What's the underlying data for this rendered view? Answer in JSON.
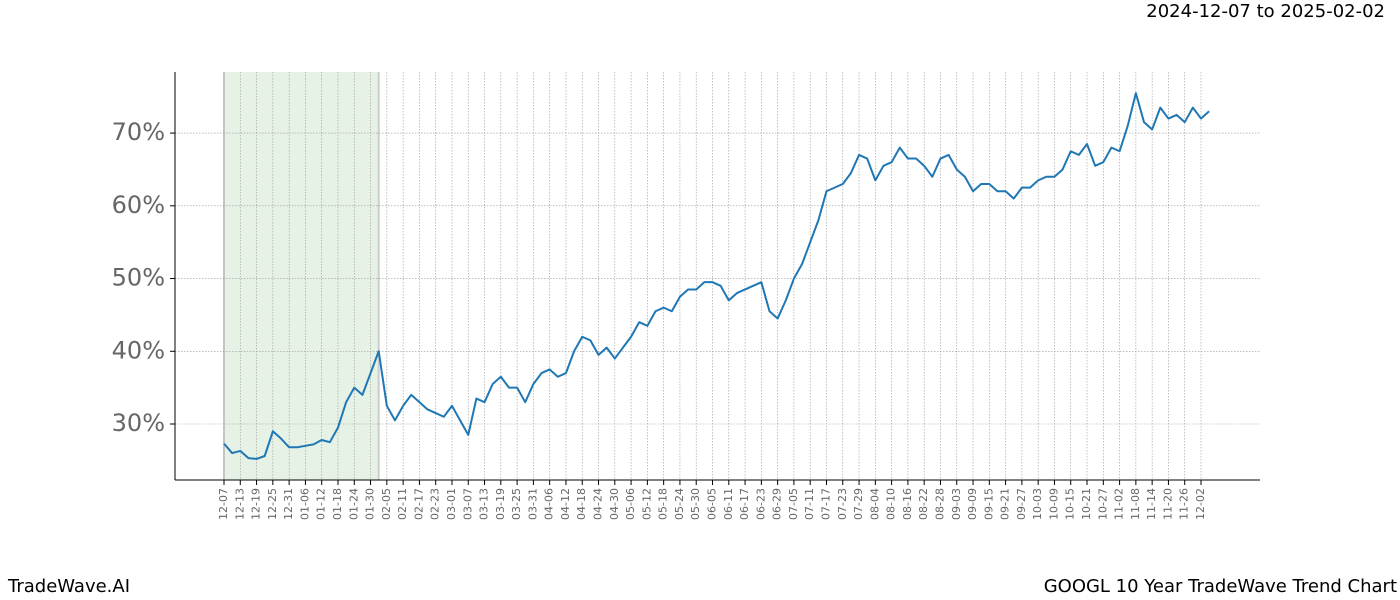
{
  "chart_data": {
    "type": "line",
    "date_range": "2024-12-07 to 2025-02-02",
    "brand": "TradeWave.AI",
    "title": "GOOGL 10 Year TradeWave Trend Chart",
    "categories": [
      "12-07",
      null,
      "12-13",
      null,
      "12-19",
      null,
      "12-25",
      null,
      "12-31",
      null,
      "01-06",
      null,
      "01-12",
      null,
      "01-18",
      null,
      "01-24",
      null,
      "01-30",
      null,
      "02-05",
      null,
      "02-11",
      null,
      "02-17",
      null,
      "02-23",
      null,
      "03-01",
      null,
      "03-07",
      null,
      "03-13",
      null,
      "03-19",
      null,
      "03-25",
      null,
      "03-31",
      null,
      "04-06",
      null,
      "04-12",
      null,
      "04-18",
      null,
      "04-24",
      null,
      "04-30",
      null,
      "05-06",
      null,
      "05-12",
      null,
      "05-18",
      null,
      "05-24",
      null,
      "05-30",
      null,
      "06-05",
      null,
      "06-11",
      null,
      "06-17",
      null,
      "06-23",
      null,
      "06-29",
      null,
      "07-05",
      null,
      "07-11",
      null,
      "07-17",
      null,
      "07-23",
      null,
      "07-29",
      null,
      "08-04",
      null,
      "08-10",
      null,
      "08-16",
      null,
      "08-22",
      null,
      "08-28",
      null,
      "09-03",
      null,
      "09-09",
      null,
      "09-15",
      null,
      "09-21",
      null,
      "09-27",
      null,
      "10-03",
      null,
      "10-09",
      null,
      "10-15",
      null,
      "10-21",
      null,
      "10-27",
      null,
      "11-02",
      null,
      "11-08",
      null,
      "11-14",
      null,
      "11-20",
      null,
      "11-26",
      null,
      "12-02",
      null
    ],
    "series": [
      {
        "color": "#1f77b4",
        "values": [
          27.3,
          26.0,
          26.3,
          25.3,
          25.2,
          25.6,
          29.0,
          28.0,
          26.8,
          26.8,
          27.0,
          27.2,
          27.8,
          27.5,
          29.5,
          33.0,
          35.0,
          34.0,
          37.0,
          40.0,
          32.5,
          30.5,
          32.5,
          34.0,
          33.0,
          32.0,
          31.5,
          31.0,
          32.5,
          30.5,
          28.5,
          33.5,
          33.0,
          35.5,
          36.5,
          35.0,
          35.0,
          33.0,
          35.5,
          37.0,
          37.5,
          36.5,
          37.0,
          40.0,
          42.0,
          41.5,
          39.5,
          40.5,
          39.0,
          40.5,
          42.0,
          44.0,
          43.5,
          45.5,
          46.0,
          45.5,
          47.5,
          48.5,
          48.5,
          49.5,
          49.5,
          49.0,
          47.0,
          48.0,
          48.5,
          49.0,
          49.5,
          45.5,
          44.5,
          47.0,
          50.0,
          52.0,
          55.0,
          58.0,
          62.0,
          62.5,
          63.0,
          64.5,
          67.0,
          66.5,
          63.5,
          65.5,
          66.0,
          68.0,
          66.5,
          66.5,
          65.5,
          64.0,
          66.5,
          67.0,
          65.0,
          64.0,
          62.0,
          63.0,
          63.0,
          62.0,
          62.0,
          61.0,
          62.5,
          62.5,
          63.5,
          64.0,
          64.0,
          65.0,
          67.5,
          67.0,
          68.5,
          65.5,
          66.0,
          68.0,
          67.5,
          71.0,
          75.5,
          71.5,
          70.5,
          73.5,
          72.0,
          72.5,
          71.5,
          73.5,
          72.0,
          73.0
        ]
      }
    ],
    "highlight": {
      "from": 0,
      "to": 19,
      "color": "#e6f2e6"
    },
    "ylim": [
      22.3,
      78.4
    ],
    "yticks": [
      {
        "value": 30,
        "label": "30%"
      },
      {
        "value": 40,
        "label": "40%"
      },
      {
        "value": 50,
        "label": "50%"
      },
      {
        "value": 60,
        "label": "60%"
      },
      {
        "value": 70,
        "label": "70%"
      }
    ],
    "grid": true
  }
}
